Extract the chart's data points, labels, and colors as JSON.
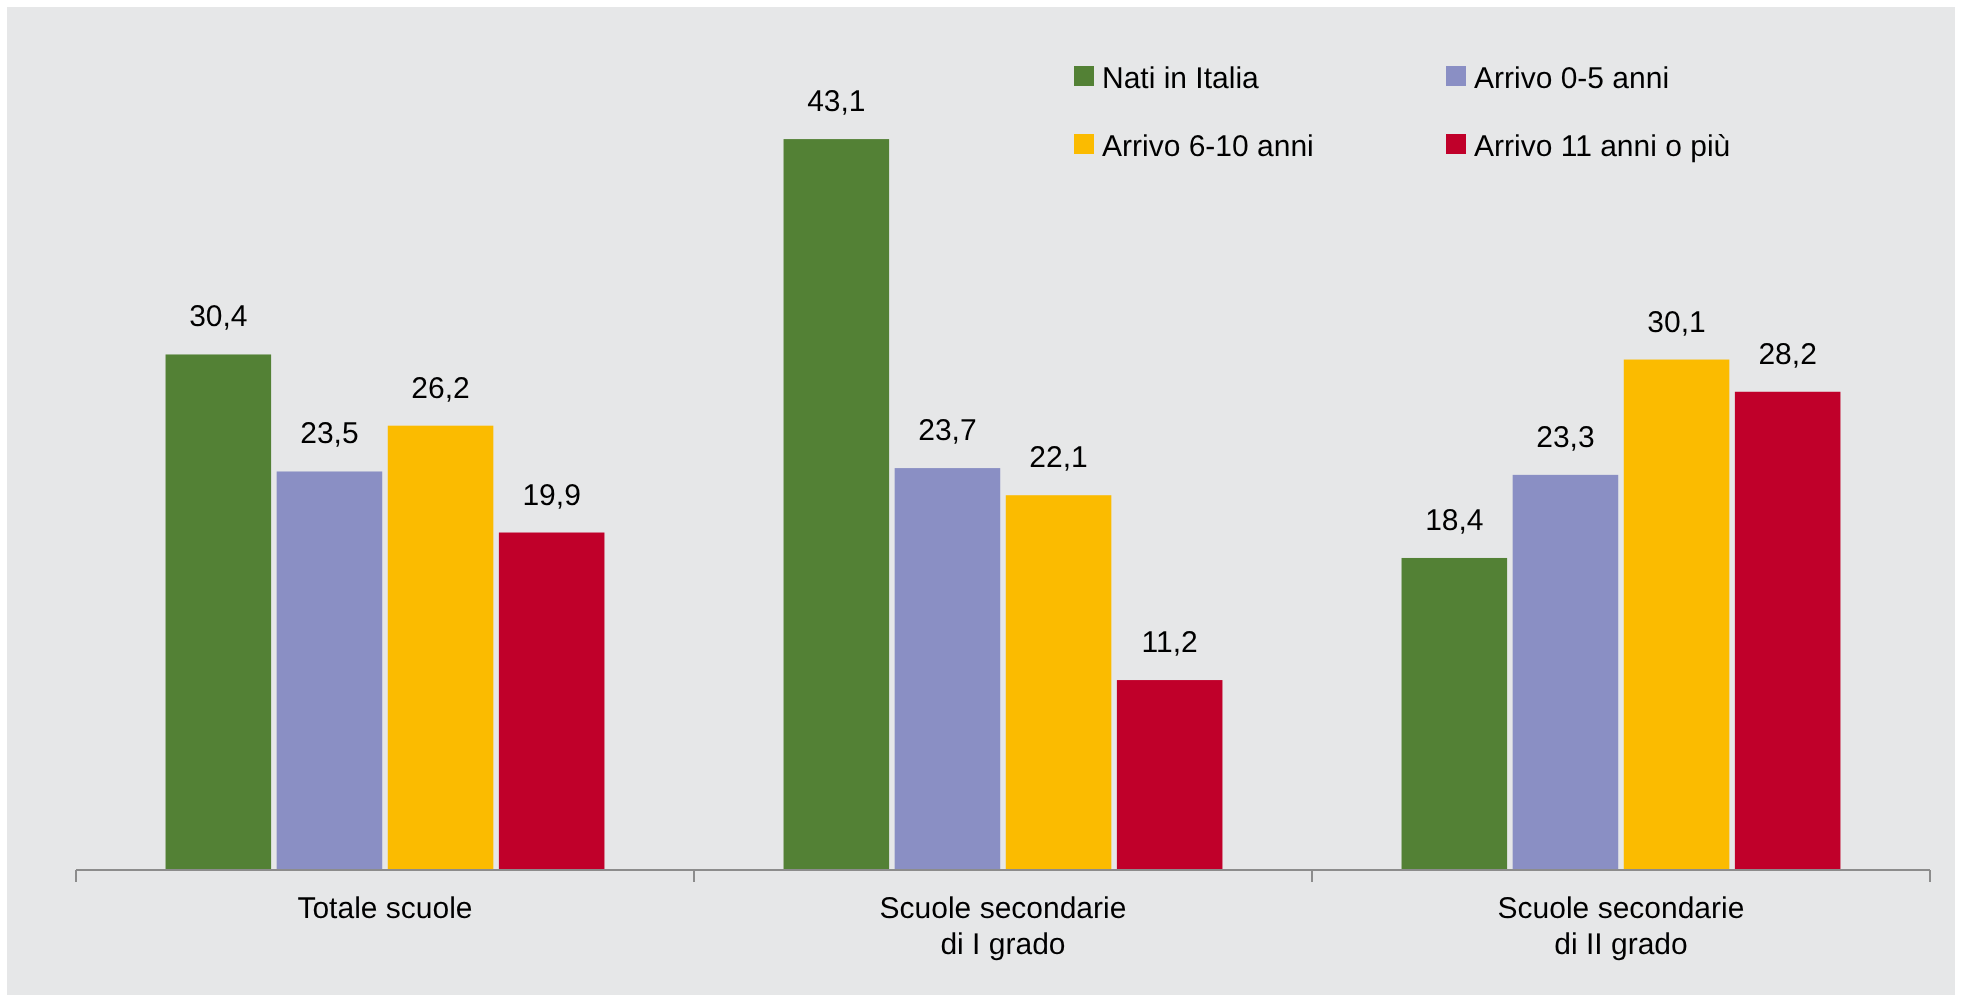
{
  "chart_data": {
    "type": "bar",
    "categories": [
      "Totale scuole",
      "Scuole secondarie\ndi I grado",
      "Scuole secondarie\ndi II grado"
    ],
    "series": [
      {
        "name": "Nati in Italia",
        "color": "#538135",
        "values": [
          30.4,
          43.1,
          18.4
        ],
        "value_labels": [
          "30,4",
          "43,1",
          "18,4"
        ]
      },
      {
        "name": "Arrivo 0-5 anni",
        "color": "#8a8fc4",
        "values": [
          23.5,
          23.7,
          23.3
        ],
        "value_labels": [
          "23,5",
          "23,7",
          "23,3"
        ]
      },
      {
        "name": "Arrivo 6-10 anni",
        "color": "#fbbb00",
        "values": [
          26.2,
          22.1,
          30.1
        ],
        "value_labels": [
          "26,2",
          "22,1",
          "30,1"
        ]
      },
      {
        "name": "Arrivo 11 anni o più",
        "color": "#c0002a",
        "values": [
          19.9,
          11.2,
          28.2
        ],
        "value_labels": [
          "19,9",
          "11,2",
          "28,2"
        ]
      }
    ],
    "legend": "top right"
  }
}
